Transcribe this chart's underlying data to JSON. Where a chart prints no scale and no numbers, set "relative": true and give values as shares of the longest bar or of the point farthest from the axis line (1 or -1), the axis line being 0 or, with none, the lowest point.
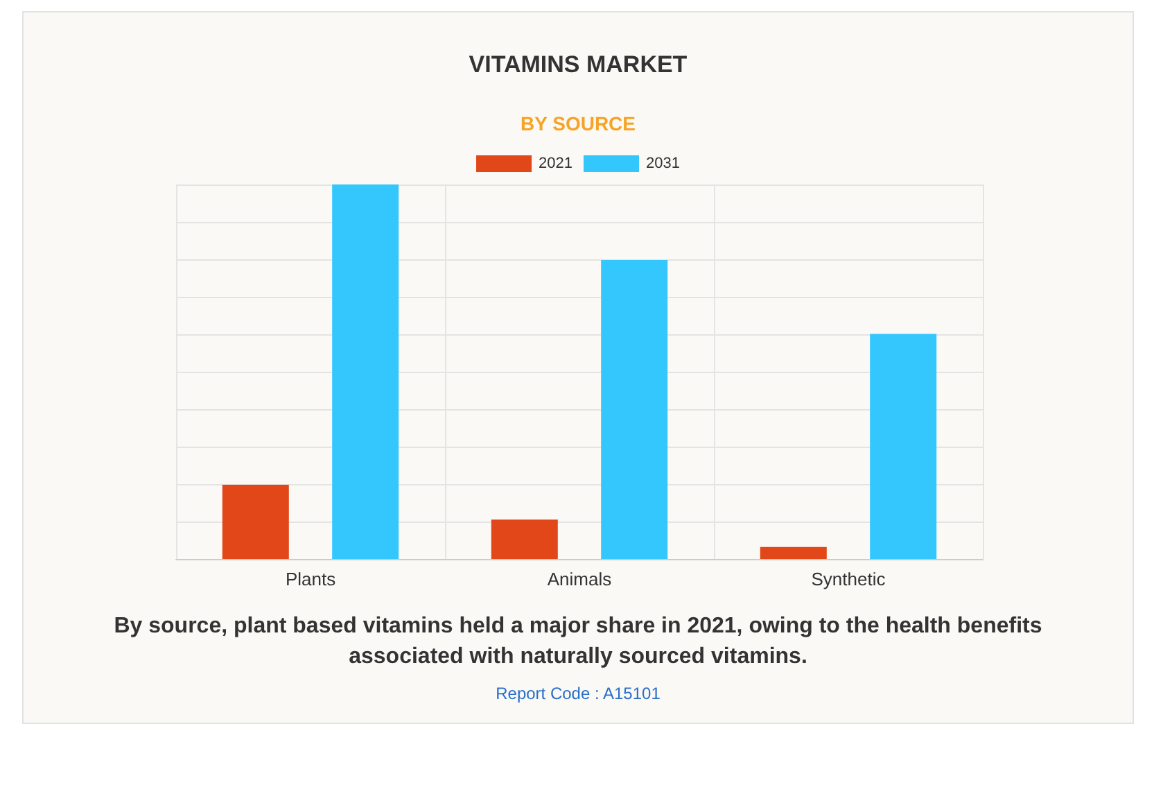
{
  "chart_data": {
    "type": "bar",
    "title": "VITAMINS MARKET",
    "subtitle": "BY SOURCE",
    "categories": [
      "Plants",
      "Animals",
      "Synthetic"
    ],
    "relative": true,
    "series": [
      {
        "name": "2021",
        "color": "#e2471a",
        "values": [
          0.198,
          0.105,
          0.032
        ]
      },
      {
        "name": "2031",
        "color": "#33c7fe",
        "values": [
          1,
          0.798,
          0.601
        ]
      }
    ],
    "grid": true,
    "legend": "top",
    "annotations": [
      "By source, plant based vitamins held a major share in 2021, owing to the health benefits associated with naturally sourced vitamins.",
      "Report Code : A15101"
    ]
  }
}
